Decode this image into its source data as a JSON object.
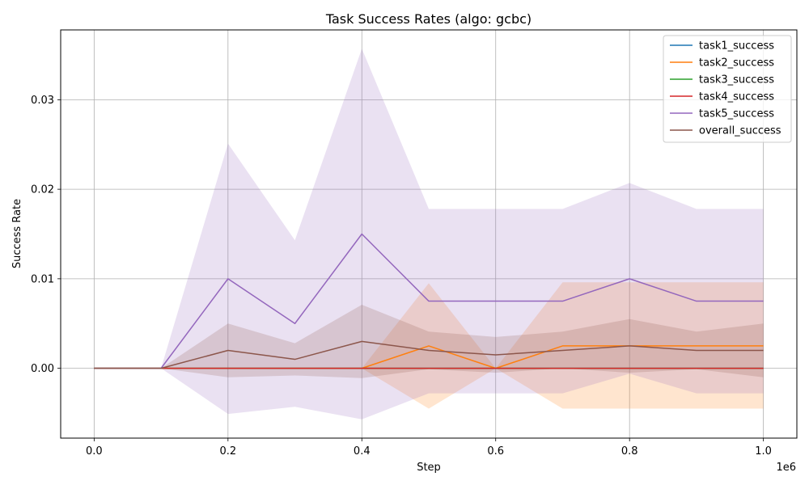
{
  "chart_data": {
    "type": "line",
    "title": "Task Success Rates (algo: gcbc)",
    "xlabel": "Step",
    "ylabel": "Success Rate",
    "x_offset_label": "1e6",
    "x_scale_factor": 1000000,
    "xlim": [
      -50000,
      1050000
    ],
    "ylim": [
      -0.0078,
      0.0378
    ],
    "x_ticks": [
      0,
      200000,
      400000,
      600000,
      800000,
      1000000
    ],
    "x_tick_labels": [
      "0.0",
      "0.2",
      "0.4",
      "0.6",
      "0.8",
      "1.0"
    ],
    "y_ticks": [
      0,
      0.01,
      0.02,
      0.03
    ],
    "y_tick_labels": [
      "0.00",
      "0.01",
      "0.02",
      "0.03"
    ],
    "grid": true,
    "legend_position": "top-right",
    "x": [
      0,
      100000,
      200000,
      300000,
      400000,
      500000,
      600000,
      700000,
      800000,
      900000,
      1000000
    ],
    "series": [
      {
        "name": "task1_success",
        "color": "#1f77b4",
        "values": [
          0,
          0,
          0,
          0,
          0,
          0,
          0,
          0,
          0,
          0,
          0
        ],
        "lower": [
          0,
          0,
          0,
          0,
          0,
          0,
          0,
          0,
          0,
          0,
          0
        ],
        "upper": [
          0,
          0,
          0,
          0,
          0,
          0,
          0,
          0,
          0,
          0,
          0
        ]
      },
      {
        "name": "task2_success",
        "color": "#ff7f0e",
        "values": [
          0,
          0,
          0,
          0,
          0,
          0.0025,
          0,
          0.0025,
          0.0025,
          0.0025,
          0.0025
        ],
        "lower": [
          0,
          0,
          0,
          0,
          0,
          -0.0045,
          0,
          -0.0045,
          -0.0045,
          -0.0045,
          -0.0045
        ],
        "upper": [
          0,
          0,
          0,
          0,
          0,
          0.0095,
          0,
          0.0096,
          0.0096,
          0.0096,
          0.0096
        ]
      },
      {
        "name": "task3_success",
        "color": "#2ca02c",
        "values": [
          0,
          0,
          0,
          0,
          0,
          0,
          0,
          0,
          0,
          0,
          0
        ],
        "lower": [
          0,
          0,
          0,
          0,
          0,
          0,
          0,
          0,
          0,
          0,
          0
        ],
        "upper": [
          0,
          0,
          0,
          0,
          0,
          0,
          0,
          0,
          0,
          0,
          0
        ]
      },
      {
        "name": "task4_success",
        "color": "#d62728",
        "values": [
          0,
          0,
          0,
          0,
          0,
          0,
          0,
          0,
          0,
          0,
          0
        ],
        "lower": [
          0,
          0,
          0,
          0,
          0,
          0,
          0,
          0,
          0,
          0,
          0
        ],
        "upper": [
          0,
          0,
          0,
          0,
          0,
          0,
          0,
          0,
          0,
          0,
          0
        ]
      },
      {
        "name": "task5_success",
        "color": "#9467bd",
        "values": [
          0,
          0,
          0.01,
          0.005,
          0.015,
          0.0075,
          0.0075,
          0.0075,
          0.01,
          0.0075,
          0.0075
        ],
        "lower": [
          0,
          0,
          -0.0051,
          -0.0043,
          -0.0057,
          -0.0028,
          -0.0028,
          -0.0028,
          -0.0006,
          -0.0028,
          -0.0028
        ],
        "upper": [
          0,
          0,
          0.0251,
          0.0143,
          0.0357,
          0.0178,
          0.0178,
          0.0178,
          0.0207,
          0.0178,
          0.0178
        ]
      },
      {
        "name": "overall_success",
        "color": "#8c564b",
        "values": [
          0,
          0,
          0.002,
          0.001,
          0.003,
          0.002,
          0.0015,
          0.002,
          0.0025,
          0.002,
          0.002
        ],
        "lower": [
          0,
          0,
          -0.001,
          -0.0008,
          -0.0011,
          -0.0001,
          -0.0005,
          0,
          -0.0005,
          -0.0001,
          -0.001
        ],
        "upper": [
          0,
          0,
          0.005,
          0.0028,
          0.0071,
          0.0041,
          0.0035,
          0.0041,
          0.0055,
          0.0041,
          0.005
        ]
      }
    ]
  }
}
